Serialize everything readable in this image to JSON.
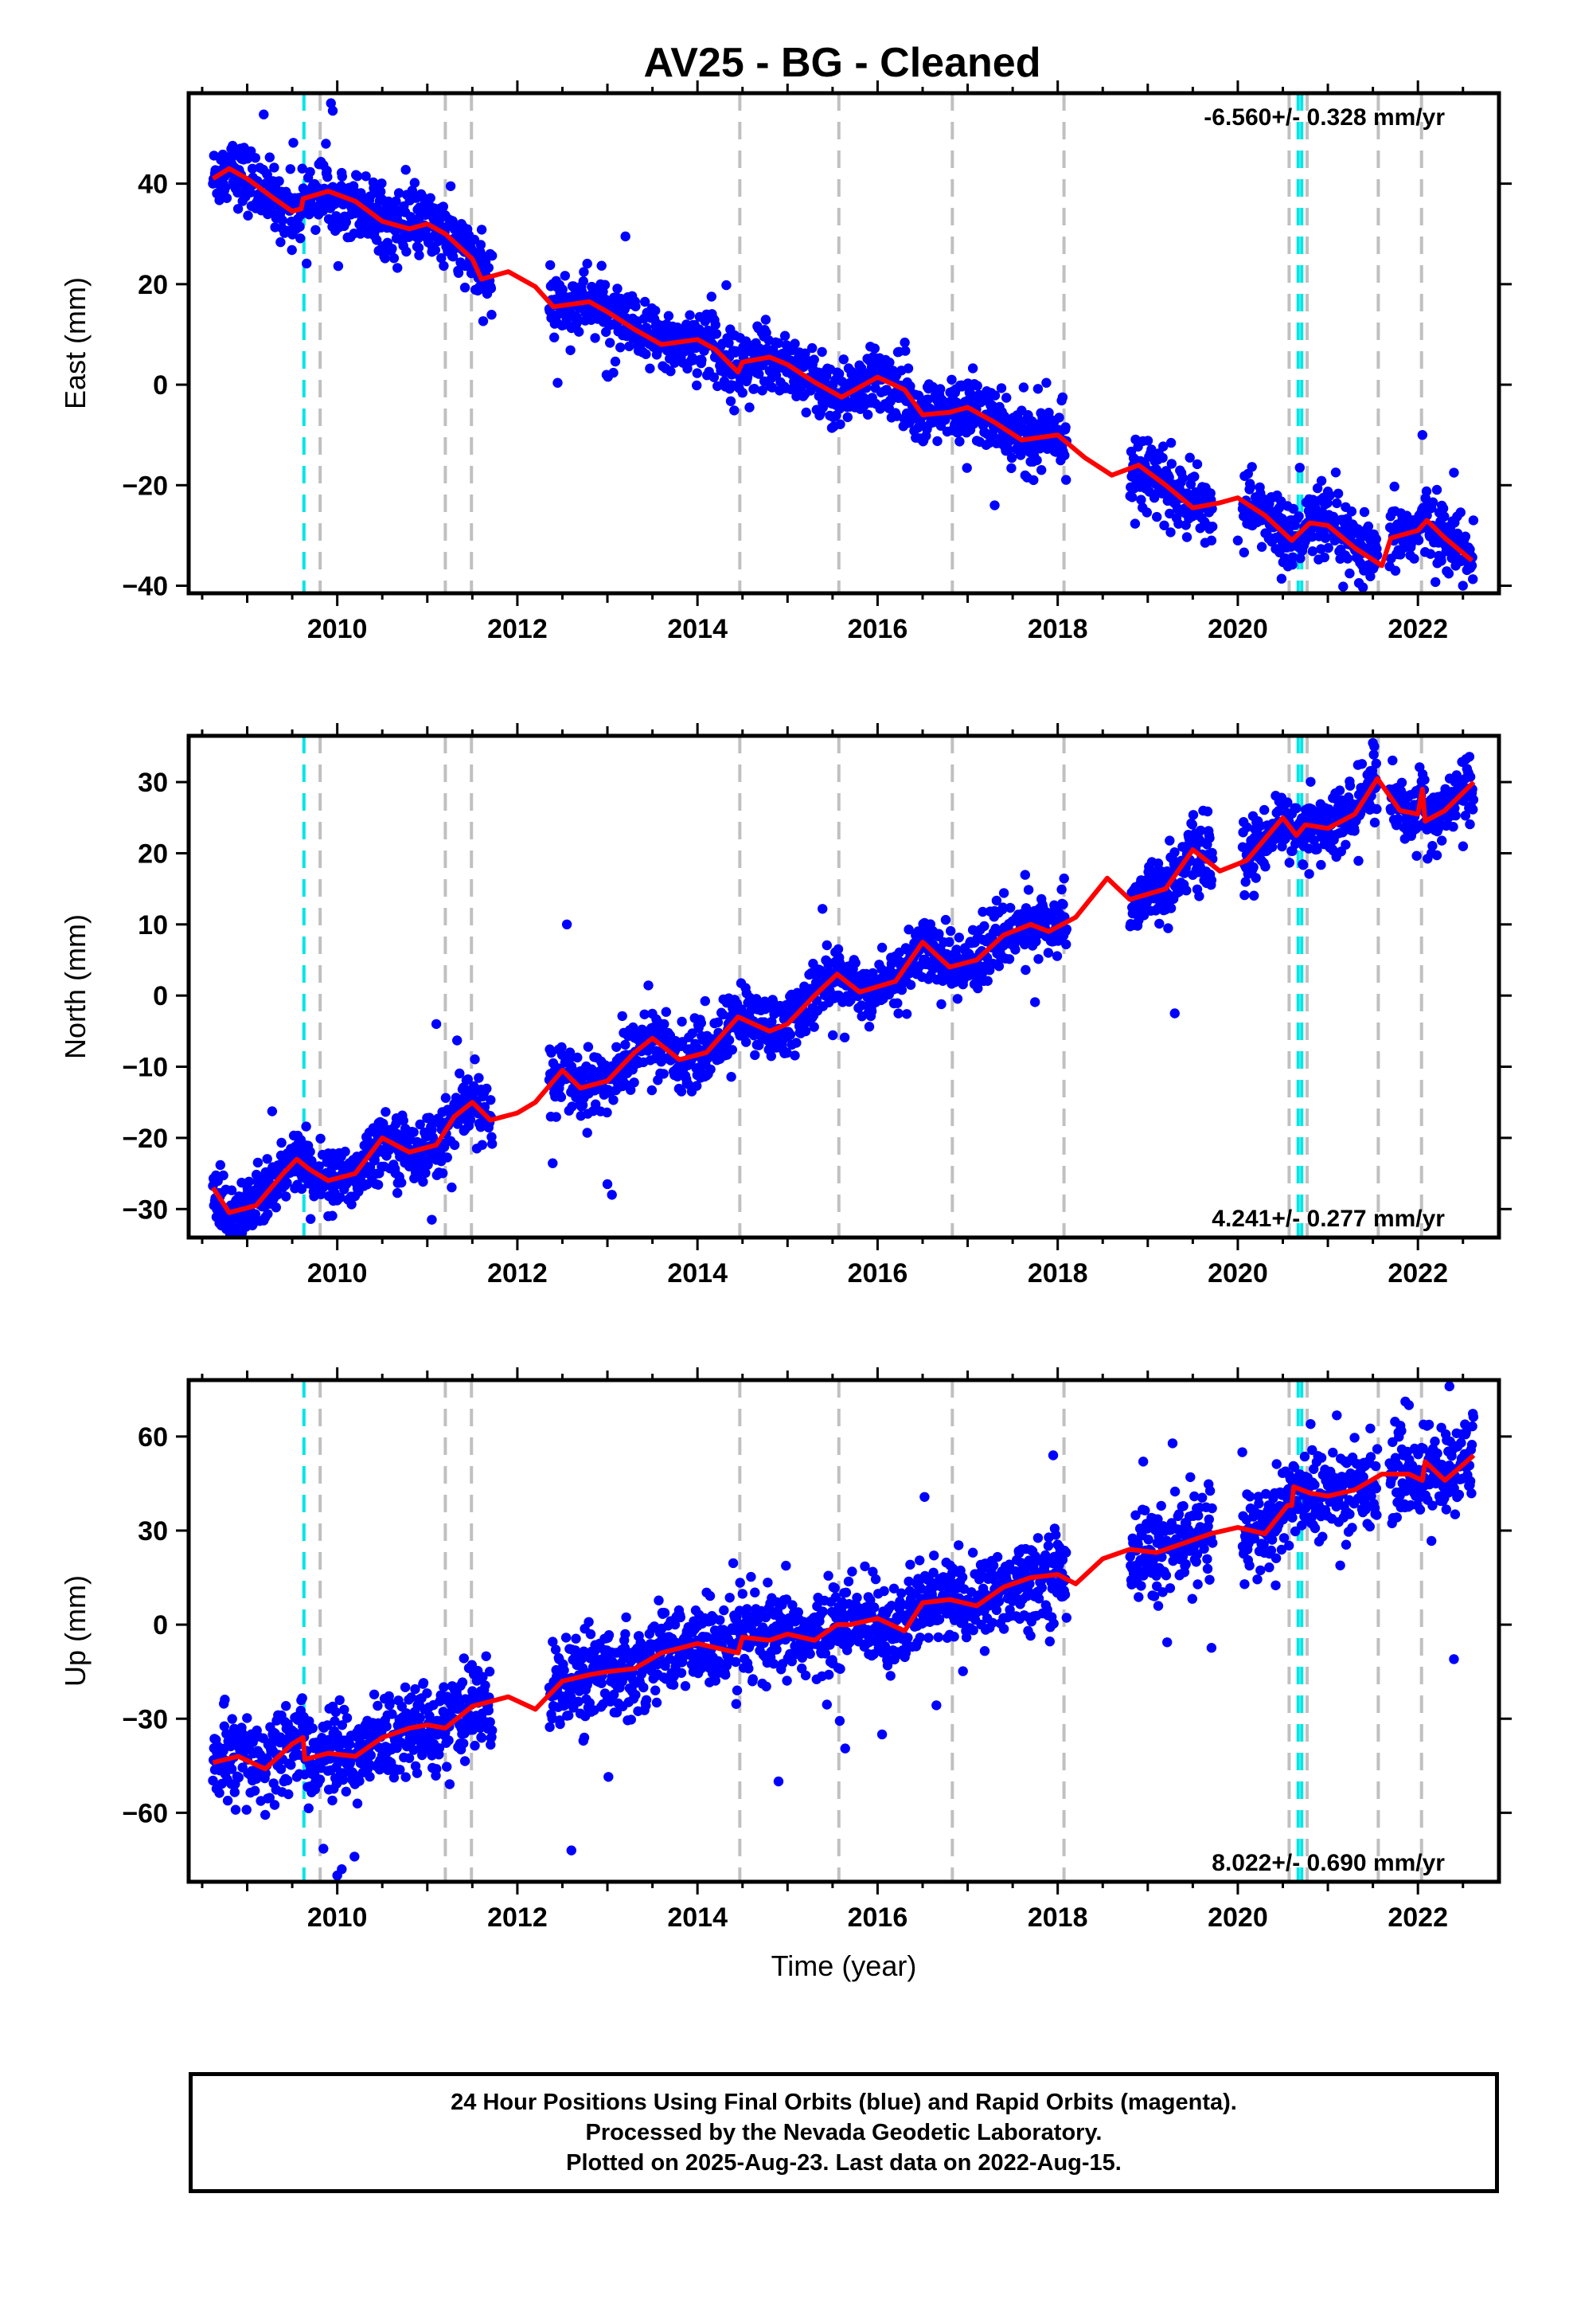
{
  "title": "AV25  - BG - Cleaned",
  "footer": {
    "line1": "24 Hour Positions Using Final Orbits (blue) and Rapid Orbits (magenta).",
    "line2": "Processed by the Nevada Geodetic Laboratory.",
    "line3": "Plotted on 2025-Aug-23. Last data on 2022-Aug-15."
  },
  "colors": {
    "points": "#0000ff",
    "model": "#ff0000",
    "equipment_change": "#c0c0c0",
    "earthquake": "#00e5e5"
  },
  "chart_data": [
    {
      "type": "scatter",
      "panel": "east",
      "ylabel": "East (mm)",
      "xlabel": "",
      "xlim": [
        2008.35,
        2022.9
      ],
      "ylim": [
        -41.5,
        58
      ],
      "xticks": [
        2010,
        2012,
        2014,
        2016,
        2018,
        2020,
        2022
      ],
      "yticks": [
        -40,
        -20,
        0,
        20,
        40
      ],
      "ytick_labels": [
        "−40",
        "−20",
        "0",
        "20",
        "40"
      ],
      "rate": "-6.560+/- 0.328 mm/yr",
      "start": 2008.62,
      "end": 2022.62,
      "offset": 43.0,
      "trend": -6.56,
      "annual_amp": 2.8,
      "noise": 3.2,
      "gaps": [
        [
          2011.72,
          2012.35
        ],
        [
          2018.1,
          2018.8
        ],
        [
          2019.72,
          2020.05
        ],
        [
          2021.55,
          2021.68
        ]
      ],
      "outliers": [
        [
          2009.93,
          56
        ],
        [
          2009.95,
          54.5
        ],
        [
          2013.2,
          29.5
        ],
        [
          2017.3,
          -24
        ],
        [
          2020.0,
          -31
        ],
        [
          2022.05,
          -10
        ],
        [
          2022.4,
          -17.5
        ],
        [
          2022.5,
          -40
        ]
      ],
      "model": [
        [
          2008.62,
          41
        ],
        [
          2008.8,
          43
        ],
        [
          2009.0,
          41
        ],
        [
          2009.3,
          37
        ],
        [
          2009.5,
          34.5
        ],
        [
          2009.6,
          35
        ],
        [
          2009.62,
          37
        ],
        [
          2009.9,
          38.5
        ],
        [
          2010.2,
          36.5
        ],
        [
          2010.5,
          32.5
        ],
        [
          2010.8,
          31
        ],
        [
          2011.0,
          32
        ],
        [
          2011.2,
          30
        ],
        [
          2011.5,
          25
        ],
        [
          2011.6,
          21
        ],
        [
          2011.9,
          22.5
        ],
        [
          2012.2,
          19.5
        ],
        [
          2012.4,
          15.5
        ],
        [
          2012.8,
          16.5
        ],
        [
          2013.0,
          14.5
        ],
        [
          2013.3,
          11
        ],
        [
          2013.6,
          8
        ],
        [
          2014.0,
          9
        ],
        [
          2014.2,
          7
        ],
        [
          2014.45,
          2.5
        ],
        [
          2014.5,
          4.5
        ],
        [
          2014.8,
          5.5
        ],
        [
          2015.0,
          4
        ],
        [
          2015.3,
          0.5
        ],
        [
          2015.6,
          -2.5
        ],
        [
          2016.0,
          1.5
        ],
        [
          2016.3,
          -1
        ],
        [
          2016.5,
          -6
        ],
        [
          2016.8,
          -5.5
        ],
        [
          2017.0,
          -4.5
        ],
        [
          2017.3,
          -7.5
        ],
        [
          2017.6,
          -11
        ],
        [
          2018.0,
          -10
        ],
        [
          2018.3,
          -14.5
        ],
        [
          2018.6,
          -18
        ],
        [
          2018.9,
          -16
        ],
        [
          2019.2,
          -20
        ],
        [
          2019.5,
          -24.5
        ],
        [
          2019.8,
          -23.5
        ],
        [
          2020.0,
          -22.5
        ],
        [
          2020.3,
          -26
        ],
        [
          2020.6,
          -31
        ],
        [
          2020.8,
          -27.5
        ],
        [
          2021.0,
          -28
        ],
        [
          2021.3,
          -32.5
        ],
        [
          2021.6,
          -36
        ],
        [
          2021.7,
          -30.5
        ],
        [
          2022.0,
          -29
        ],
        [
          2022.1,
          -27
        ],
        [
          2022.3,
          -30.5
        ],
        [
          2022.6,
          -35
        ]
      ]
    },
    {
      "type": "scatter",
      "panel": "north",
      "ylabel": "North (mm)",
      "xlabel": "",
      "xlim": [
        2008.35,
        2022.9
      ],
      "ylim": [
        -34,
        36.5
      ],
      "xticks": [
        2010,
        2012,
        2014,
        2016,
        2018,
        2020,
        2022
      ],
      "yticks": [
        -30,
        -20,
        -10,
        0,
        10,
        20,
        30
      ],
      "ytick_labels": [
        "−30",
        "−20",
        "−10",
        "0",
        "10",
        "20",
        "30"
      ],
      "rate": "4.241+/- 0.277 mm/yr",
      "start": 2008.62,
      "end": 2022.62,
      "offset": -30.0,
      "trend": 4.24,
      "annual_amp": 2.2,
      "noise": 2.2,
      "gaps": [
        [
          2011.72,
          2012.35
        ],
        [
          2018.1,
          2018.8
        ],
        [
          2019.72,
          2020.05
        ],
        [
          2021.55,
          2021.68
        ]
      ],
      "outliers": [
        [
          2012.55,
          10
        ],
        [
          2011.1,
          -4
        ],
        [
          2013.0,
          -26.5
        ],
        [
          2013.05,
          -28
        ],
        [
          2019.3,
          -2.5
        ],
        [
          2021.5,
          35.5
        ],
        [
          2009.9,
          -31
        ],
        [
          2011.05,
          -31.5
        ]
      ],
      "model": [
        [
          2008.62,
          -27
        ],
        [
          2008.8,
          -30.5
        ],
        [
          2009.1,
          -29.5
        ],
        [
          2009.4,
          -25
        ],
        [
          2009.55,
          -23
        ],
        [
          2009.7,
          -24.5
        ],
        [
          2009.9,
          -26
        ],
        [
          2010.2,
          -25
        ],
        [
          2010.5,
          -20
        ],
        [
          2010.8,
          -22
        ],
        [
          2011.1,
          -21
        ],
        [
          2011.3,
          -17
        ],
        [
          2011.5,
          -15
        ],
        [
          2011.7,
          -17.5
        ],
        [
          2012.0,
          -16.5
        ],
        [
          2012.2,
          -15
        ],
        [
          2012.5,
          -10.5
        ],
        [
          2012.7,
          -13
        ],
        [
          2013.0,
          -12
        ],
        [
          2013.3,
          -8
        ],
        [
          2013.5,
          -6
        ],
        [
          2013.8,
          -9
        ],
        [
          2014.1,
          -8
        ],
        [
          2014.45,
          -3
        ],
        [
          2014.8,
          -5
        ],
        [
          2015.0,
          -4
        ],
        [
          2015.3,
          0
        ],
        [
          2015.55,
          3
        ],
        [
          2015.8,
          0.5
        ],
        [
          2016.2,
          2
        ],
        [
          2016.5,
          7.5
        ],
        [
          2016.8,
          4
        ],
        [
          2017.1,
          5
        ],
        [
          2017.4,
          8.5
        ],
        [
          2017.7,
          10
        ],
        [
          2017.9,
          9
        ],
        [
          2018.2,
          11
        ],
        [
          2018.55,
          16.5
        ],
        [
          2018.8,
          13.5
        ],
        [
          2019.2,
          15
        ],
        [
          2019.5,
          20.5
        ],
        [
          2019.8,
          17.5
        ],
        [
          2020.1,
          19
        ],
        [
          2020.5,
          25
        ],
        [
          2020.65,
          22.5
        ],
        [
          2020.75,
          24
        ],
        [
          2021.0,
          23.5
        ],
        [
          2021.3,
          25.5
        ],
        [
          2021.55,
          30.5
        ],
        [
          2021.8,
          26
        ],
        [
          2022.0,
          25.5
        ],
        [
          2022.05,
          29
        ],
        [
          2022.08,
          24.5
        ],
        [
          2022.3,
          26
        ],
        [
          2022.62,
          30
        ]
      ]
    },
    {
      "type": "scatter",
      "panel": "up",
      "ylabel": "Up (mm)",
      "xlabel": "Time (year)",
      "xlim": [
        2008.35,
        2022.9
      ],
      "ylim": [
        -82,
        78
      ],
      "xticks": [
        2010,
        2012,
        2014,
        2016,
        2018,
        2020,
        2022
      ],
      "yticks": [
        -60,
        -30,
        0,
        30,
        60
      ],
      "ytick_labels": [
        "−60",
        "−30",
        "0",
        "30",
        "60"
      ],
      "rate": "8.022+/- 0.690 mm/yr",
      "start": 2008.62,
      "end": 2022.62,
      "offset": -44.0,
      "trend": 8.02,
      "annual_amp": 3.5,
      "noise": 7.0,
      "gaps": [
        [
          2011.72,
          2012.35
        ],
        [
          2018.1,
          2018.8
        ],
        [
          2019.72,
          2020.05
        ],
        [
          2021.55,
          2021.68
        ]
      ],
      "outliers": [
        [
          2012.6,
          -72
        ],
        [
          2010.0,
          -80
        ],
        [
          2010.05,
          -78
        ],
        [
          2014.9,
          -50
        ],
        [
          2016.05,
          -35
        ],
        [
          2022.4,
          -11
        ],
        [
          2022.35,
          76
        ],
        [
          2021.9,
          70
        ],
        [
          2017.95,
          54
        ],
        [
          2018.95,
          52
        ],
        [
          2020.05,
          55
        ]
      ],
      "model": [
        [
          2008.62,
          -44
        ],
        [
          2008.9,
          -42
        ],
        [
          2009.2,
          -46
        ],
        [
          2009.5,
          -38
        ],
        [
          2009.62,
          -36
        ],
        [
          2009.64,
          -43
        ],
        [
          2009.9,
          -41
        ],
        [
          2010.2,
          -42
        ],
        [
          2010.5,
          -36
        ],
        [
          2010.8,
          -33
        ],
        [
          2011.0,
          -32
        ],
        [
          2011.2,
          -33
        ],
        [
          2011.5,
          -26
        ],
        [
          2011.9,
          -23
        ],
        [
          2012.2,
          -27
        ],
        [
          2012.5,
          -18
        ],
        [
          2012.8,
          -16
        ],
        [
          2013.0,
          -15
        ],
        [
          2013.3,
          -14
        ],
        [
          2013.6,
          -9
        ],
        [
          2014.0,
          -6
        ],
        [
          2014.45,
          -9
        ],
        [
          2014.5,
          -4
        ],
        [
          2014.8,
          -5
        ],
        [
          2015.0,
          -3
        ],
        [
          2015.3,
          -5
        ],
        [
          2015.55,
          0
        ],
        [
          2015.7,
          0
        ],
        [
          2016.0,
          2
        ],
        [
          2016.3,
          -2
        ],
        [
          2016.5,
          7
        ],
        [
          2016.8,
          8
        ],
        [
          2017.1,
          6
        ],
        [
          2017.4,
          12
        ],
        [
          2017.7,
          15
        ],
        [
          2018.0,
          16
        ],
        [
          2018.2,
          13
        ],
        [
          2018.5,
          21
        ],
        [
          2018.8,
          24
        ],
        [
          2019.1,
          23
        ],
        [
          2019.4,
          26
        ],
        [
          2019.7,
          29
        ],
        [
          2020.0,
          31
        ],
        [
          2020.3,
          29
        ],
        [
          2020.55,
          38
        ],
        [
          2020.6,
          38
        ],
        [
          2020.62,
          44
        ],
        [
          2020.8,
          42
        ],
        [
          2021.0,
          41
        ],
        [
          2021.3,
          43
        ],
        [
          2021.6,
          48
        ],
        [
          2021.9,
          48
        ],
        [
          2022.05,
          46
        ],
        [
          2022.08,
          52
        ],
        [
          2022.3,
          46
        ],
        [
          2022.62,
          54
        ]
      ]
    }
  ],
  "event_lines": {
    "equipment": [
      2009.81,
      2011.2,
      2011.49,
      2014.47,
      2015.57,
      2016.83,
      2018.07,
      2020.57,
      2020.77,
      2021.56,
      2022.04
    ],
    "earthquake": [
      2009.63,
      2020.67,
      2020.71
    ]
  }
}
